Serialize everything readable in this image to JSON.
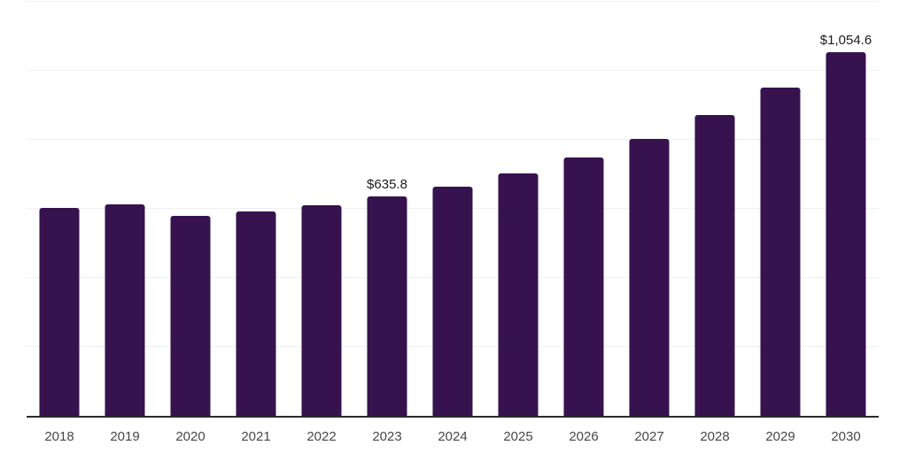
{
  "chart_data": {
    "type": "bar",
    "title": "",
    "categories": [
      "2018",
      "2019",
      "2020",
      "2021",
      "2022",
      "2023",
      "2024",
      "2025",
      "2026",
      "2027",
      "2028",
      "2029",
      "2030"
    ],
    "values": [
      603,
      612,
      579,
      592,
      610,
      635.8,
      663,
      702,
      749,
      803,
      873,
      952,
      1054.6
    ],
    "data_labels": {
      "2023": "$635.8",
      "2030": "$1,054.6"
    },
    "xlabel": "",
    "ylabel": "",
    "ylim": [
      0,
      1200
    ],
    "gridline_step": 200,
    "y_tick_labels_visible": false,
    "grid": "horizontal",
    "legend": "none",
    "colors": {
      "bar": "#36124e",
      "gridline": "#f0f0f2",
      "axis": "#2b2b2b",
      "x_tick_label": "#474747",
      "data_label": "#1a1a1a",
      "background": "#ffffff"
    }
  }
}
